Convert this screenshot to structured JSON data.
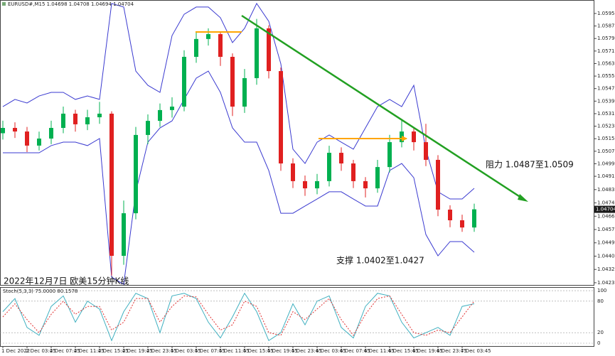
{
  "chart_data": [
    {
      "type": "candlestick",
      "title": "EURUSD#,M15  1.04698 1.04708 1.04694 1.04704",
      "categories": [
        "1 Dec 2022",
        null,
        "2 Dec 03:45",
        null,
        "2 Dec 07:45",
        null,
        "2 Dec 11:45",
        null,
        "2 Dec 15:45",
        null,
        "2 Dec 19:45",
        null,
        "2 Dec 23:45",
        null,
        "5 Dec 03:45",
        null,
        "5 Dec 07:45",
        null,
        "5 Dec 11:45",
        null,
        "5 Dec 15:45",
        null,
        "5 Dec 19:45",
        null,
        "5 Dec 23:45",
        null,
        "6 Dec 03:45",
        null,
        "6 Dec 07:45",
        null,
        "6 Dec 11:45",
        null,
        "6 Dec 15:45",
        null,
        "6 Dec 19:45",
        null,
        "6 Dec 23:45",
        null,
        "7 Dec 03:45",
        null
      ],
      "open": [
        1.0519,
        1.05224,
        1.05201,
        1.05111,
        1.05156,
        1.05224,
        1.05315,
        1.05247,
        1.05292,
        1.05315,
        1.04407,
        1.04679,
        1.05179,
        1.05269,
        1.05338,
        1.0536,
        1.05678,
        1.05792,
        1.05823,
        1.05678,
        1.0536,
        1.05542,
        1.0586,
        1.05587,
        1.04997,
        1.04884,
        1.04838,
        1.04884,
        1.05065,
        1.04997,
        1.04884,
        1.04838,
        1.04974,
        1.05133,
        1.05201,
        1.05133,
        1.0502,
        1.04702,
        1.04634,
        1.04588
      ],
      "high": [
        1.0527,
        1.0526,
        1.0523,
        1.052,
        1.0527,
        1.0536,
        1.0534,
        1.0534,
        1.0539,
        1.0533,
        1.0476,
        1.0523,
        1.0531,
        1.0538,
        1.0542,
        1.0572,
        1.0584,
        1.0586,
        1.0584,
        1.057,
        1.056,
        1.0592,
        1.0588,
        1.0561,
        1.0503,
        1.0492,
        1.0493,
        1.0511,
        1.051,
        1.0502,
        1.0491,
        1.0502,
        1.0518,
        1.0528,
        1.0523,
        1.0525,
        1.0505,
        1.0473,
        1.0467,
        1.0474
      ],
      "low": [
        1.0515,
        1.0516,
        1.0507,
        1.0508,
        1.0512,
        1.0519,
        1.052,
        1.0521,
        1.0525,
        1.0428,
        1.0435,
        1.0464,
        1.0512,
        1.0523,
        1.0529,
        1.0533,
        1.0564,
        1.0575,
        1.0562,
        1.053,
        1.0532,
        1.055,
        1.0554,
        1.0495,
        1.0484,
        1.0479,
        1.048,
        1.0485,
        1.0495,
        1.0484,
        1.0478,
        1.0481,
        1.0494,
        1.051,
        1.0508,
        1.0498,
        1.0466,
        1.0459,
        1.0456,
        1.0456
      ],
      "close": [
        1.05224,
        1.05201,
        1.05111,
        1.05156,
        1.05224,
        1.05315,
        1.05247,
        1.05292,
        1.05315,
        1.04407,
        1.04679,
        1.05179,
        1.05269,
        1.05338,
        1.0536,
        1.05678,
        1.05792,
        1.05823,
        1.05678,
        1.0536,
        1.05542,
        1.0586,
        1.05587,
        1.04997,
        1.04884,
        1.04838,
        1.04884,
        1.05065,
        1.04997,
        1.04884,
        1.04838,
        1.04974,
        1.05133,
        1.05201,
        1.05133,
        1.0502,
        1.04702,
        1.04634,
        1.04588,
        1.04704
      ],
      "upper_band": [
        1.0536,
        1.05406,
        1.05383,
        1.05428,
        1.05451,
        1.05451,
        1.05406,
        1.05428,
        1.05406,
        1.06019,
        1.05996,
        1.05587,
        1.05496,
        1.05451,
        1.05814,
        1.0595,
        1.05996,
        1.05996,
        1.05928,
        1.05769,
        1.0586,
        1.06019,
        1.05905,
        1.05633,
        1.05088,
        1.04997,
        1.05133,
        1.05179,
        1.05133,
        1.05088,
        1.05224,
        1.0536,
        1.05406,
        1.0536,
        1.05496,
        1.05088,
        1.04816,
        1.0477,
        1.0477,
        1.04838
      ],
      "lower_band": [
        1.05065,
        1.05065,
        1.05065,
        1.05065,
        1.05111,
        1.05133,
        1.05133,
        1.05111,
        1.05156,
        1.04271,
        1.04225,
        1.04816,
        1.05133,
        1.05224,
        1.05269,
        1.05406,
        1.05542,
        1.05587,
        1.05451,
        1.05224,
        1.05133,
        1.05133,
        1.04952,
        1.04679,
        1.04679,
        1.04725,
        1.0477,
        1.04816,
        1.04816,
        1.0477,
        1.04725,
        1.04725,
        1.04952,
        1.04997,
        1.04906,
        1.04543,
        1.04407,
        1.04498,
        1.04498,
        1.0443
      ],
      "bull_color": "#00b050",
      "bear_color": "#e02020",
      "band_color": "#3a3ad0",
      "ylim": [
        1.04221,
        1.06041
      ],
      "yticks": [
        1.05955,
        1.05875,
        1.05795,
        1.05715,
        1.05635,
        1.05555,
        1.05475,
        1.05395,
        1.05315,
        1.05235,
        1.05155,
        1.05075,
        1.04995,
        1.04915,
        {
          "value": 1.0483,
          "label": "1.04830"
        },
        1.04745,
        {
          "value": 1.0466,
          "label": "1.04660"
        },
        1.04575,
        1.0449,
        1.04405,
        1.0432,
        1.04235
      ],
      "annotations": [
        "阻力 1.0487至1.0509",
        "支撑 1.0402至1.0427",
        "2022年12月7日 欧美15分钟K线"
      ]
    },
    {
      "type": "line",
      "title": "Stoch(5,3,3) 75.0000 80.1578",
      "series": [
        {
          "color": "#40b0c0",
          "dashed": false,
          "values": [
            60,
            85,
            30,
            15,
            70,
            90,
            40,
            80,
            65,
            5,
            60,
            95,
            85,
            20,
            90,
            95,
            85,
            40,
            10,
            50,
            95,
            60,
            5,
            20,
            75,
            35,
            80,
            90,
            30,
            10,
            70,
            95,
            90,
            40,
            10,
            20,
            30,
            15,
            70,
            75
          ]
        },
        {
          "color": "#e03030",
          "dashed": true,
          "values": [
            50,
            75,
            45,
            20,
            55,
            80,
            55,
            70,
            70,
            25,
            40,
            85,
            85,
            40,
            70,
            90,
            88,
            55,
            25,
            35,
            80,
            70,
            20,
            15,
            60,
            45,
            65,
            85,
            45,
            15,
            55,
            85,
            90,
            55,
            20,
            15,
            25,
            20,
            50,
            80.1578
          ]
        }
      ],
      "ylim": [
        -5.4,
        106.8
      ],
      "yticks": [
        100,
        80,
        20,
        0
      ]
    }
  ]
}
